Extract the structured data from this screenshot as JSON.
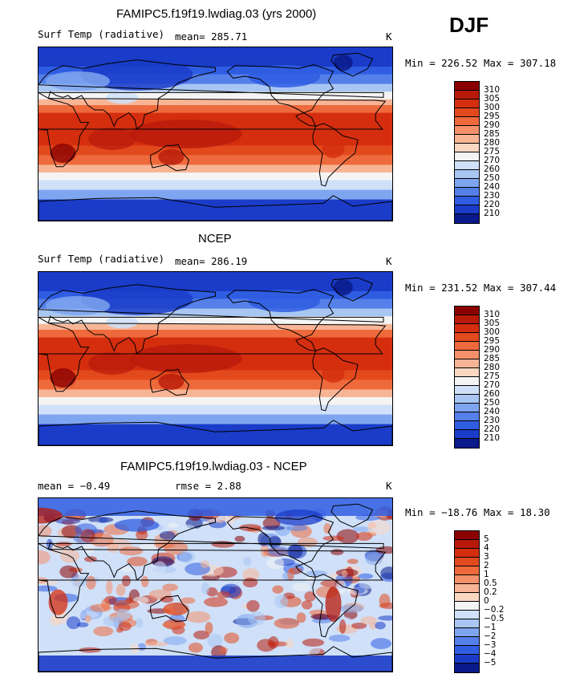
{
  "season": "DJF",
  "panels": [
    {
      "title": "FAMIPC5.f19f19.lwdiag.03 (yrs 2000)",
      "variable": "Surf Temp (radiative)",
      "stat_text": "mean=  285.71",
      "units": "K",
      "minmax": "Min = 226.52 Max = 307.18",
      "colorbar": "temp"
    },
    {
      "title": "NCEP",
      "variable": "Surf Temp (radiative)",
      "stat_text": "mean=  286.19",
      "units": "K",
      "minmax": "Min = 231.52 Max = 307.44",
      "colorbar": "temp"
    },
    {
      "title": "FAMIPC5.f19f19.lwdiag.03 - NCEP",
      "stat_text": "mean =   −0.49",
      "stat_text2": "rmse =    2.88",
      "units": "K",
      "minmax": "Min = −18.76 Max =  18.30",
      "colorbar": "diff"
    }
  ],
  "chart_data": [
    {
      "type": "heatmap",
      "title": "FAMIPC5.f19f19.lwdiag.03 (yrs 2000)",
      "subtitle": "Surf Temp (radiative)",
      "mean": 285.71,
      "min": 226.52,
      "max": 307.18,
      "units": "K",
      "levels": [
        210,
        220,
        230,
        240,
        250,
        260,
        270,
        275,
        280,
        285,
        290,
        295,
        300,
        305,
        310
      ]
    },
    {
      "type": "heatmap",
      "title": "NCEP",
      "subtitle": "Surf Temp (radiative)",
      "mean": 286.19,
      "min": 231.52,
      "max": 307.44,
      "units": "K",
      "levels": [
        210,
        220,
        230,
        240,
        250,
        260,
        270,
        275,
        280,
        285,
        290,
        295,
        300,
        305,
        310
      ]
    },
    {
      "type": "heatmap",
      "title": "FAMIPC5.f19f19.lwdiag.03 - NCEP",
      "mean": -0.49,
      "rmse": 2.88,
      "min": -18.76,
      "max": 18.3,
      "units": "K",
      "levels": [
        -5,
        -4,
        -3,
        -2,
        -1,
        -0.5,
        -0.2,
        0,
        0.2,
        0.5,
        1,
        2,
        3,
        4,
        5
      ]
    }
  ],
  "colorbars": {
    "temp": {
      "labels": [
        "310",
        "305",
        "300",
        "295",
        "290",
        "285",
        "280",
        "275",
        "270",
        "260",
        "250",
        "240",
        "230",
        "220",
        "210"
      ],
      "colors": [
        "#8b0000",
        "#b81a0a",
        "#d42e0f",
        "#e24a1e",
        "#ee6a3c",
        "#f4906a",
        "#f8b596",
        "#fbd7c2",
        "#f4f4f4",
        "#cfe0f8",
        "#a9c6f3",
        "#7ea5ef",
        "#5580ea",
        "#2f5de2",
        "#1a3cc8",
        "#0a1a8a"
      ]
    },
    "diff": {
      "labels": [
        "5",
        "4",
        "3",
        "2",
        "1",
        "0.5",
        "0.2",
        "0",
        "−0.2",
        "−0.5",
        "−1",
        "−2",
        "−3",
        "−4",
        "−5"
      ],
      "colors": [
        "#8b0000",
        "#b81a0a",
        "#d42e0f",
        "#e24a1e",
        "#ee6a3c",
        "#f4906a",
        "#f8b596",
        "#fbd7c2",
        "#f4f4f4",
        "#cfe0f8",
        "#a9c6f3",
        "#7ea5ef",
        "#5580ea",
        "#2f5de2",
        "#1a3cc8",
        "#0a1a8a"
      ]
    }
  }
}
